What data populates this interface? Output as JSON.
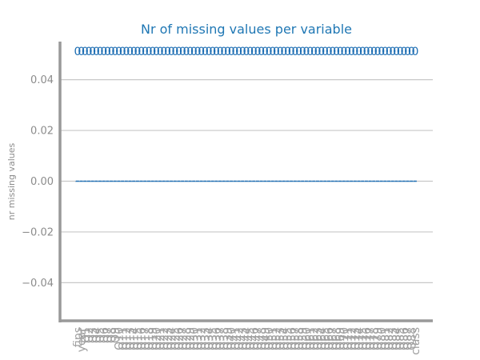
{
  "chart_data": {
    "type": "bar",
    "title": "Nr of missing values per variable",
    "xlabel": "",
    "ylabel": "nr missing values",
    "ylim": [
      -0.055,
      0.055
    ],
    "yticks": [
      "0.04",
      "0.02",
      "0.00",
      "−0.02",
      "−0.04"
    ],
    "ytick_values": [
      0.04,
      0.02,
      0.0,
      -0.02,
      -0.04
    ],
    "grid": "horizontal",
    "bar_style": "dashed-outline",
    "data_label_format": "integer",
    "categories": [
      "fips",
      "year",
      "Q1",
      "Q2",
      "Q3",
      "Q4",
      "Q5",
      "Q6",
      "Q7",
      "Q8",
      "Q9",
      "Q10",
      "Q11",
      "Q12",
      "Q13",
      "Q14",
      "Q15",
      "Q16",
      "Q17",
      "Q18",
      "Q19",
      "Q20",
      "Q21",
      "Q22",
      "Q23",
      "Q24",
      "Q25",
      "Q26",
      "Q27",
      "Q28",
      "Q29",
      "Q30",
      "Q31",
      "Q32",
      "Q33",
      "Q34",
      "Q35",
      "Q36",
      "Q37",
      "Q38",
      "Q39",
      "Q40",
      "Q41",
      "Q42",
      "Q43",
      "Q44",
      "Q45",
      "Q46",
      "Q47",
      "Q48",
      "Q49",
      "Q50",
      "Q51",
      "Q52",
      "Q53",
      "Q54",
      "Q55",
      "Q56",
      "Q57",
      "Q58",
      "Q59",
      "Q60",
      "Q61",
      "Q62",
      "Q63",
      "Q64",
      "Q65",
      "Q66",
      "Q67",
      "Q68",
      "Q69",
      "Q70",
      "Q71",
      "Q72",
      "Q73",
      "Q74",
      "Q75",
      "Q76",
      "Q77",
      "Q78",
      "Q79",
      "Q80",
      "Q81",
      "Q82",
      "Q83",
      "Q84",
      "Q85",
      "Q86",
      "Q87",
      "Q88",
      "class"
    ],
    "values": [
      0,
      0,
      0,
      0,
      0,
      0,
      0,
      0,
      0,
      0,
      0,
      0,
      0,
      0,
      0,
      0,
      0,
      0,
      0,
      0,
      0,
      0,
      0,
      0,
      0,
      0,
      0,
      0,
      0,
      0,
      0,
      0,
      0,
      0,
      0,
      0,
      0,
      0,
      0,
      0,
      0,
      0,
      0,
      0,
      0,
      0,
      0,
      0,
      0,
      0,
      0,
      0,
      0,
      0,
      0,
      0,
      0,
      0,
      0,
      0,
      0,
      0,
      0,
      0,
      0,
      0,
      0,
      0,
      0,
      0,
      0,
      0,
      0,
      0,
      0,
      0,
      0,
      0,
      0,
      0,
      0,
      0,
      0,
      0,
      0,
      0,
      0,
      0,
      0,
      0,
      0
    ]
  },
  "colors": {
    "title": "#1f77b4",
    "bar": "#1f6fb4",
    "data_label": "#1f6fb4",
    "grid": "#c8c8c8",
    "axis": "#999999",
    "tick_text": "#8c8c8c",
    "category_text": "#a0a0a0"
  }
}
